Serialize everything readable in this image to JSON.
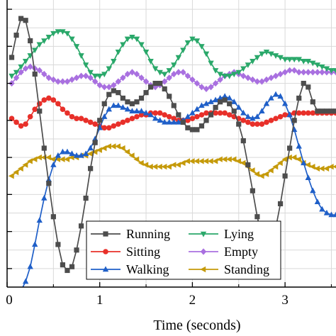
{
  "chart_data": {
    "type": "line",
    "xlabel": "Time (seconds)",
    "ylabel": "",
    "xlim": [
      0,
      3.55
    ],
    "ylim": [
      0,
      15.5
    ],
    "x_ticks": [
      0,
      1,
      2,
      3
    ],
    "x_tick_labels": [
      "0",
      "1",
      "2",
      "3"
    ],
    "grid": true,
    "legend_position": "bottom-center",
    "legend_columns": 2,
    "series": [
      {
        "name": "Running",
        "color": "#4d4d4d",
        "marker": "square",
        "x": [
          0.05,
          0.1,
          0.15,
          0.2,
          0.25,
          0.3,
          0.35,
          0.4,
          0.45,
          0.5,
          0.55,
          0.6,
          0.65,
          0.7,
          0.75,
          0.8,
          0.85,
          0.9,
          0.95,
          1.0,
          1.05,
          1.1,
          1.15,
          1.2,
          1.25,
          1.3,
          1.35,
          1.4,
          1.45,
          1.5,
          1.55,
          1.6,
          1.65,
          1.7,
          1.75,
          1.8,
          1.85,
          1.9,
          1.95,
          2.0,
          2.05,
          2.1,
          2.15,
          2.2,
          2.25,
          2.3,
          2.35,
          2.4,
          2.45,
          2.5,
          2.55,
          2.6,
          2.65,
          2.7,
          2.75,
          2.8,
          2.85,
          2.9,
          2.95,
          3.0,
          3.05,
          3.1,
          3.15,
          3.2,
          3.25,
          3.3,
          3.35,
          3.4,
          3.45,
          3.5,
          3.55
        ],
        "values": [
          12.4,
          13.6,
          14.5,
          14.4,
          13.3,
          11.5,
          9.5,
          7.5,
          5.6,
          3.8,
          2.3,
          1.2,
          0.9,
          1.1,
          2.0,
          3.3,
          4.8,
          6.4,
          7.8,
          9.0,
          9.9,
          10.4,
          10.6,
          10.5,
          10.2,
          10.0,
          9.9,
          10.0,
          10.2,
          10.5,
          10.8,
          11.0,
          11.0,
          10.7,
          10.3,
          9.8,
          9.3,
          8.9,
          8.6,
          8.5,
          8.5,
          8.7,
          9.0,
          9.3,
          9.7,
          10.0,
          10.1,
          9.9,
          9.5,
          8.8,
          7.9,
          6.6,
          5.2,
          3.8,
          2.7,
          2.2,
          2.3,
          3.2,
          4.5,
          6.0,
          7.5,
          9.0,
          10.2,
          11.0,
          10.8,
          10.0,
          9.5,
          9.5,
          9.5,
          9.5,
          9.5
        ]
      },
      {
        "name": "Sitting",
        "color": "#e8302a",
        "marker": "circle",
        "x": [
          0.05,
          0.1,
          0.15,
          0.2,
          0.25,
          0.3,
          0.35,
          0.4,
          0.45,
          0.5,
          0.55,
          0.6,
          0.65,
          0.7,
          0.75,
          0.8,
          0.85,
          0.9,
          0.95,
          1.0,
          1.05,
          1.1,
          1.15,
          1.2,
          1.25,
          1.3,
          1.35,
          1.4,
          1.45,
          1.5,
          1.55,
          1.6,
          1.65,
          1.7,
          1.75,
          1.8,
          1.85,
          1.9,
          1.95,
          2.0,
          2.05,
          2.1,
          2.15,
          2.2,
          2.25,
          2.3,
          2.35,
          2.4,
          2.45,
          2.5,
          2.55,
          2.6,
          2.65,
          2.7,
          2.75,
          2.8,
          2.85,
          2.9,
          2.95,
          3.0,
          3.05,
          3.1,
          3.15,
          3.2,
          3.25,
          3.3,
          3.35,
          3.4,
          3.45,
          3.5,
          3.55
        ],
        "values": [
          9.1,
          8.9,
          8.7,
          8.8,
          9.2,
          9.6,
          9.9,
          10.1,
          10.2,
          10.1,
          9.9,
          9.6,
          9.4,
          9.2,
          9.1,
          9.1,
          9.0,
          8.9,
          8.8,
          8.7,
          8.6,
          8.6,
          8.7,
          8.8,
          8.9,
          9.0,
          9.1,
          9.2,
          9.3,
          9.3,
          9.4,
          9.4,
          9.4,
          9.3,
          9.2,
          9.1,
          9.0,
          9.0,
          9.0,
          9.1,
          9.2,
          9.3,
          9.4,
          9.4,
          9.4,
          9.4,
          9.4,
          9.3,
          9.2,
          9.1,
          9.0,
          8.9,
          8.8,
          8.8,
          8.8,
          8.9,
          9.0,
          9.1,
          9.2,
          9.3,
          9.3,
          9.4,
          9.4,
          9.4,
          9.4,
          9.4,
          9.4,
          9.4,
          9.4,
          9.4,
          9.4
        ]
      },
      {
        "name": "Walking",
        "color": "#1f5fc8",
        "marker": "triangle-up",
        "x": [
          0.05,
          0.1,
          0.15,
          0.2,
          0.25,
          0.3,
          0.35,
          0.4,
          0.45,
          0.5,
          0.55,
          0.6,
          0.65,
          0.7,
          0.75,
          0.8,
          0.85,
          0.9,
          0.95,
          1.0,
          1.05,
          1.1,
          1.15,
          1.2,
          1.25,
          1.3,
          1.35,
          1.4,
          1.45,
          1.5,
          1.55,
          1.6,
          1.65,
          1.7,
          1.75,
          1.8,
          1.85,
          1.9,
          1.95,
          2.0,
          2.05,
          2.1,
          2.15,
          2.2,
          2.25,
          2.3,
          2.35,
          2.4,
          2.45,
          2.5,
          2.55,
          2.6,
          2.65,
          2.7,
          2.75,
          2.8,
          2.85,
          2.9,
          2.95,
          3.0,
          3.05,
          3.1,
          3.15,
          3.2,
          3.25,
          3.3,
          3.35,
          3.4,
          3.45,
          3.5,
          3.55
        ],
        "values": [
          -0.2,
          -0.3,
          -0.2,
          0.3,
          1.1,
          2.3,
          3.6,
          4.8,
          5.8,
          6.6,
          7.1,
          7.3,
          7.3,
          7.2,
          7.1,
          7.1,
          7.2,
          7.5,
          8.0,
          8.6,
          9.2,
          9.6,
          9.8,
          9.8,
          9.7,
          9.6,
          9.5,
          9.5,
          9.5,
          9.4,
          9.3,
          9.1,
          9.0,
          8.9,
          8.9,
          8.9,
          8.9,
          9.0,
          9.2,
          9.4,
          9.6,
          9.8,
          9.9,
          10.0,
          10.1,
          10.2,
          10.3,
          10.2,
          10.0,
          9.7,
          9.4,
          9.2,
          9.1,
          9.2,
          9.5,
          9.9,
          10.2,
          10.4,
          10.3,
          9.9,
          9.3,
          8.5,
          7.6,
          6.7,
          5.9,
          5.2,
          4.6,
          4.2,
          4.0,
          3.9,
          3.9
        ]
      },
      {
        "name": "Lying",
        "color": "#2aa86a",
        "marker": "triangle-down",
        "x": [
          0.05,
          0.1,
          0.15,
          0.2,
          0.25,
          0.3,
          0.35,
          0.4,
          0.45,
          0.5,
          0.55,
          0.6,
          0.65,
          0.7,
          0.75,
          0.8,
          0.85,
          0.9,
          0.95,
          1.0,
          1.05,
          1.1,
          1.15,
          1.2,
          1.25,
          1.3,
          1.35,
          1.4,
          1.45,
          1.5,
          1.55,
          1.6,
          1.65,
          1.7,
          1.75,
          1.8,
          1.85,
          1.9,
          1.95,
          2.0,
          2.05,
          2.1,
          2.15,
          2.2,
          2.25,
          2.3,
          2.35,
          2.4,
          2.45,
          2.5,
          2.55,
          2.6,
          2.65,
          2.7,
          2.75,
          2.8,
          2.85,
          2.9,
          2.95,
          3.0,
          3.05,
          3.1,
          3.15,
          3.2,
          3.25,
          3.3,
          3.35,
          3.4,
          3.45,
          3.5,
          3.55
        ],
        "values": [
          11.4,
          11.6,
          11.9,
          12.2,
          12.5,
          12.8,
          13.1,
          13.3,
          13.5,
          13.7,
          13.8,
          13.8,
          13.7,
          13.4,
          13.0,
          12.5,
          12.0,
          11.6,
          11.4,
          11.4,
          11.5,
          11.8,
          12.2,
          12.7,
          13.1,
          13.4,
          13.5,
          13.4,
          13.1,
          12.7,
          12.2,
          11.8,
          11.6,
          11.5,
          11.7,
          12.0,
          12.4,
          12.8,
          13.2,
          13.4,
          13.3,
          13.0,
          12.6,
          12.1,
          11.7,
          11.5,
          11.4,
          11.4,
          11.5,
          11.6,
          11.8,
          12.0,
          12.2,
          12.4,
          12.6,
          12.7,
          12.6,
          12.5,
          12.4,
          12.3,
          12.3,
          12.3,
          12.3,
          12.2,
          12.2,
          12.1,
          12.0,
          11.9,
          11.8,
          11.7,
          11.7
        ]
      },
      {
        "name": "Empty",
        "color": "#a970e0",
        "marker": "diamond",
        "x": [
          0.05,
          0.1,
          0.15,
          0.2,
          0.25,
          0.3,
          0.35,
          0.4,
          0.45,
          0.5,
          0.55,
          0.6,
          0.65,
          0.7,
          0.75,
          0.8,
          0.85,
          0.9,
          0.95,
          1.0,
          1.05,
          1.1,
          1.15,
          1.2,
          1.25,
          1.3,
          1.35,
          1.4,
          1.45,
          1.5,
          1.55,
          1.6,
          1.65,
          1.7,
          1.75,
          1.8,
          1.85,
          1.9,
          1.95,
          2.0,
          2.05,
          2.1,
          2.15,
          2.2,
          2.25,
          2.3,
          2.35,
          2.4,
          2.45,
          2.5,
          2.55,
          2.6,
          2.65,
          2.7,
          2.75,
          2.8,
          2.85,
          2.9,
          2.95,
          3.0,
          3.05,
          3.1,
          3.15,
          3.2,
          3.25,
          3.3,
          3.35,
          3.4,
          3.45,
          3.5,
          3.55
        ],
        "values": [
          11.0,
          11.3,
          11.6,
          11.8,
          11.9,
          11.8,
          11.7,
          11.5,
          11.3,
          11.2,
          11.1,
          11.1,
          11.1,
          11.2,
          11.3,
          11.4,
          11.4,
          11.3,
          11.1,
          10.9,
          10.8,
          10.8,
          10.9,
          11.1,
          11.3,
          11.5,
          11.6,
          11.5,
          11.3,
          11.1,
          10.9,
          10.8,
          10.9,
          11.1,
          11.3,
          11.5,
          11.6,
          11.6,
          11.4,
          11.2,
          11.0,
          10.8,
          10.7,
          10.8,
          11.0,
          11.2,
          11.4,
          11.5,
          11.6,
          11.5,
          11.4,
          11.3,
          11.2,
          11.1,
          11.1,
          11.2,
          11.3,
          11.4,
          11.5,
          11.6,
          11.7,
          11.7,
          11.6,
          11.6,
          11.6,
          11.6,
          11.6,
          11.6,
          11.6,
          11.6,
          11.6
        ]
      },
      {
        "name": "Standing",
        "color": "#c59a0a",
        "marker": "triangle-left",
        "x": [
          0.05,
          0.1,
          0.15,
          0.2,
          0.25,
          0.3,
          0.35,
          0.4,
          0.45,
          0.5,
          0.55,
          0.6,
          0.65,
          0.7,
          0.75,
          0.8,
          0.85,
          0.9,
          0.95,
          1.0,
          1.05,
          1.1,
          1.15,
          1.2,
          1.25,
          1.3,
          1.35,
          1.4,
          1.45,
          1.5,
          1.55,
          1.6,
          1.65,
          1.7,
          1.75,
          1.8,
          1.85,
          1.9,
          1.95,
          2.0,
          2.05,
          2.1,
          2.15,
          2.2,
          2.25,
          2.3,
          2.35,
          2.4,
          2.45,
          2.5,
          2.55,
          2.6,
          2.65,
          2.7,
          2.75,
          2.8,
          2.85,
          2.9,
          2.95,
          3.0,
          3.05,
          3.1,
          3.15,
          3.2,
          3.25,
          3.3,
          3.35,
          3.4,
          3.45,
          3.5,
          3.55
        ],
        "values": [
          6.0,
          6.2,
          6.4,
          6.6,
          6.8,
          6.9,
          7.0,
          7.0,
          7.0,
          6.9,
          6.9,
          6.9,
          6.9,
          7.0,
          7.0,
          7.1,
          7.1,
          7.2,
          7.3,
          7.4,
          7.5,
          7.6,
          7.6,
          7.6,
          7.5,
          7.3,
          7.1,
          6.9,
          6.7,
          6.6,
          6.5,
          6.5,
          6.5,
          6.5,
          6.5,
          6.6,
          6.6,
          6.7,
          6.8,
          6.8,
          6.8,
          6.8,
          6.8,
          6.8,
          6.8,
          6.9,
          6.9,
          6.9,
          6.9,
          6.8,
          6.7,
          6.5,
          6.3,
          6.1,
          6.0,
          6.1,
          6.3,
          6.5,
          6.7,
          6.9,
          7.0,
          7.0,
          6.9,
          6.7,
          6.6,
          6.5,
          6.4,
          6.4,
          6.4,
          6.5,
          6.5
        ]
      }
    ]
  }
}
